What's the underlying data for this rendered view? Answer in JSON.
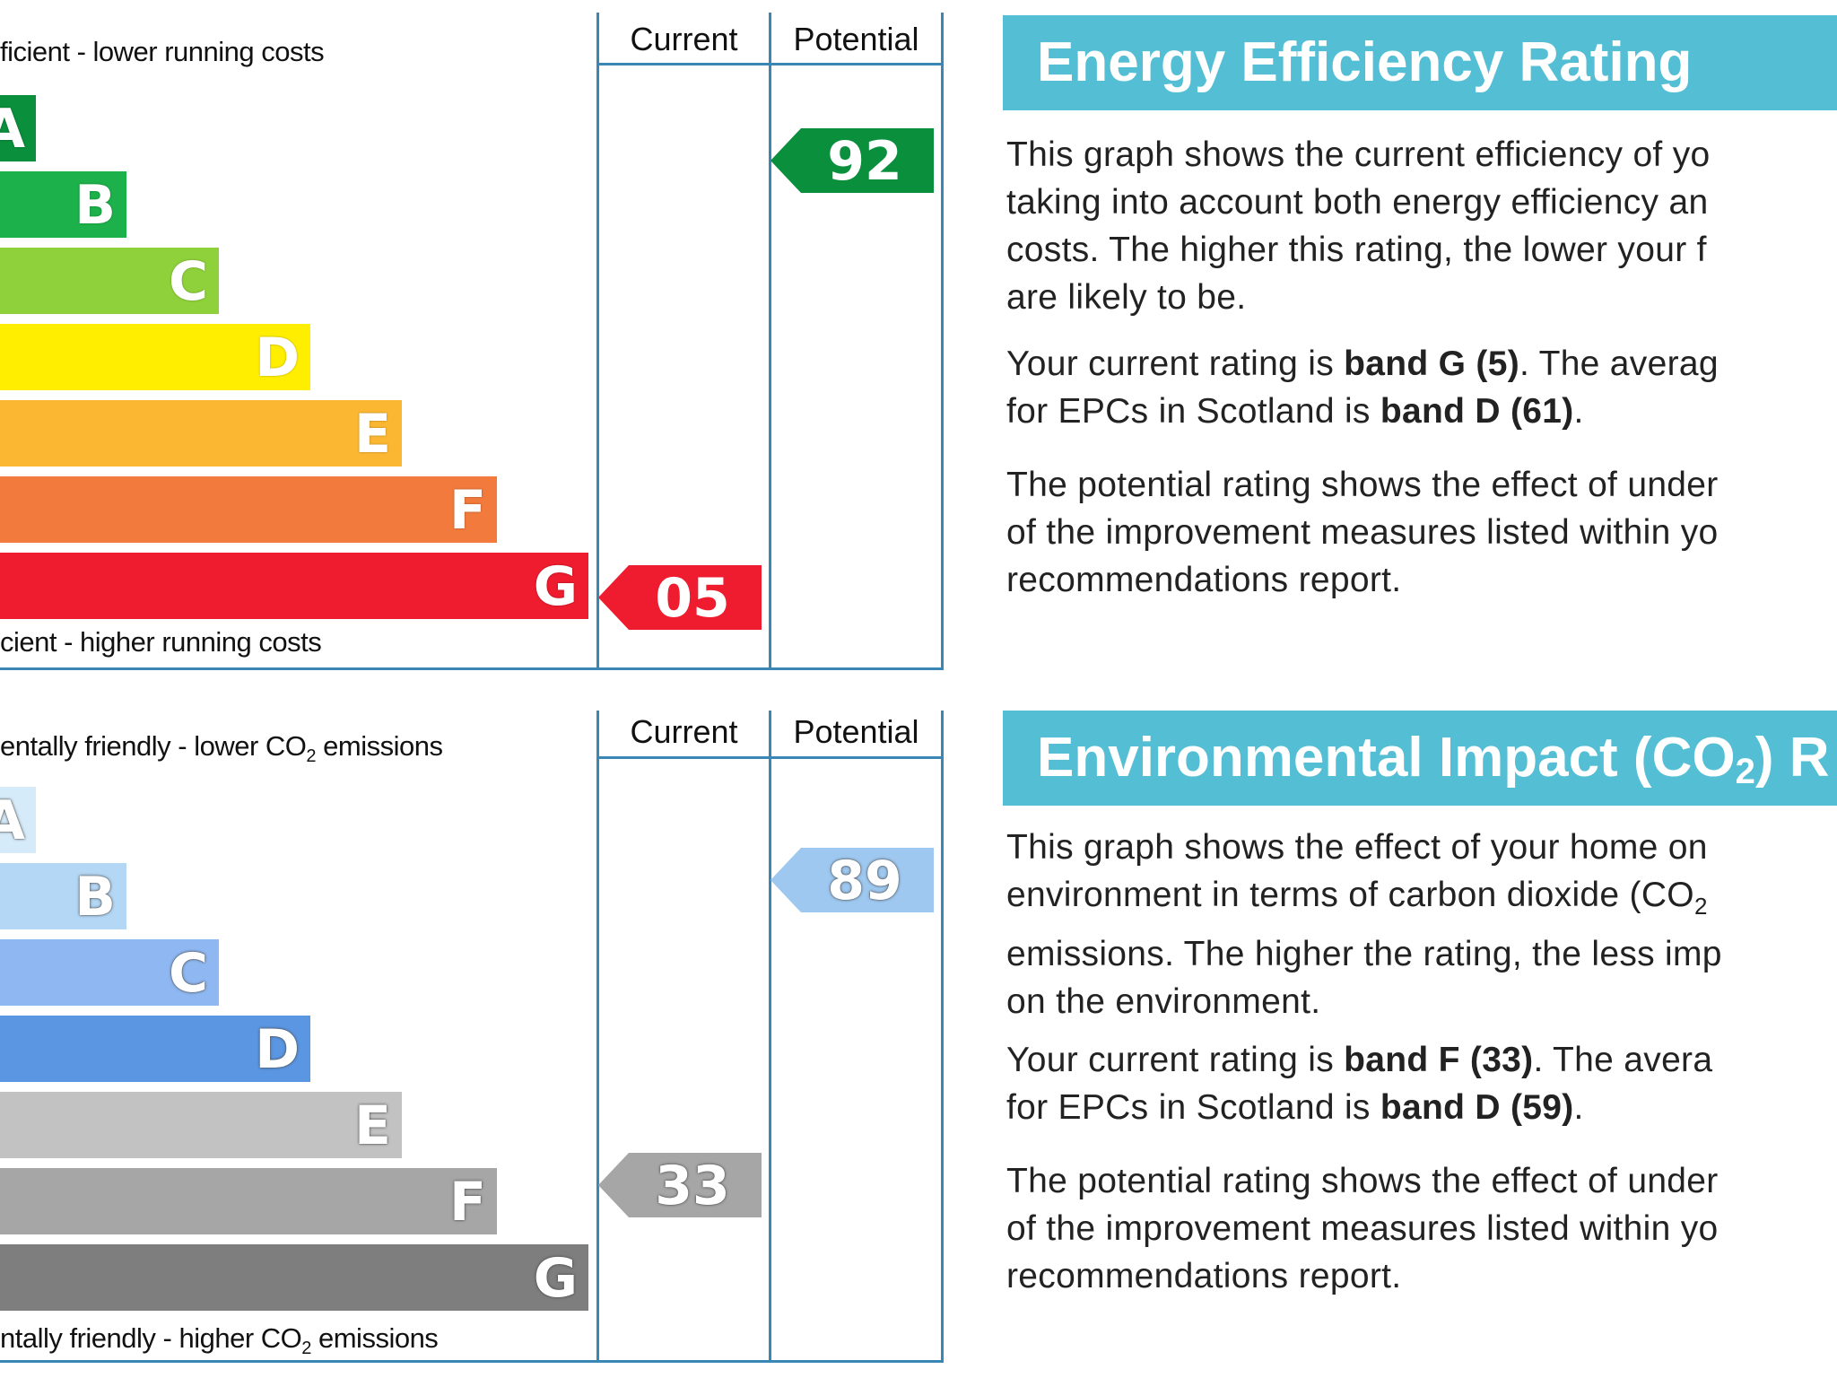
{
  "energy": {
    "col_current": "Current",
    "col_potential": "Potential",
    "top_caption": "ficient - lower running costs",
    "bottom_caption": "cient - higher running costs",
    "bands": [
      "A",
      "B",
      "C",
      "D",
      "E",
      "F",
      "G"
    ],
    "band_colors": [
      "#0a8f3c",
      "#1cb14a",
      "#8fd13a",
      "#ffee00",
      "#fbb732",
      "#f17a3c",
      "#ee1c2e"
    ],
    "current_value": "05",
    "current_band": "G",
    "current_color": "#ee1c2e",
    "potential_value": "92",
    "potential_band": "A",
    "potential_color": "#0a8f3c"
  },
  "environment": {
    "col_current": "Current",
    "col_potential": "Potential",
    "top_caption_pre": "entally friendly - lower CO",
    "top_caption_sub": "2",
    "top_caption_post": " emissions",
    "bottom_caption_pre": "ntally friendly - higher CO",
    "bottom_caption_sub": "2",
    "bottom_caption_post": " emissions",
    "bands": [
      "A",
      "B",
      "C",
      "D",
      "E",
      "F",
      "G"
    ],
    "band_colors": [
      "#d6ebfa",
      "#b3d7f5",
      "#8fb8f2",
      "#5b96e2",
      "#c2c2c2",
      "#a6a6a6",
      "#7e7e7e"
    ],
    "current_value": "33",
    "current_band": "F",
    "current_color": "#a6a6a6",
    "potential_value": "89",
    "potential_band": "B",
    "potential_color": "#9ec8f0"
  },
  "energy_panel": {
    "title": "Energy Efficiency Rating",
    "desc_lines": [
      "This graph shows the current efficiency of yo",
      "taking into account both energy efficiency an",
      "costs. The higher this rating, the lower your f",
      "are likely to be."
    ],
    "current_pre": "Your current rating is ",
    "current_band": "band G (5)",
    "current_mid": ". The averag",
    "avg_pre": "for EPCs in Scotland is ",
    "avg_band": "band D (61)",
    "avg_post": ".",
    "potential_lines": [
      "The potential rating shows the effect of under",
      "of the improvement measures listed within yo",
      "recommendations report."
    ]
  },
  "env_panel": {
    "title_pre": "Environmental Impact (CO",
    "title_sub": "2",
    "title_post": ") R",
    "desc_line1": "This graph shows the effect of your home on",
    "desc_line2_pre": "environment in terms of carbon dioxide (CO",
    "desc_line2_sub": "2",
    "desc_lines_rest": [
      "emissions. The higher the rating, the less imp",
      "on the environment."
    ],
    "current_pre": "Your current rating is ",
    "current_band": "band F (33)",
    "current_mid": ". The avera",
    "avg_pre": "for EPCs in Scotland is ",
    "avg_band": "band D (59)",
    "avg_post": ".",
    "potential_lines": [
      "The potential rating shows the effect of under",
      "of the improvement measures listed within yo",
      "recommendations report."
    ]
  }
}
